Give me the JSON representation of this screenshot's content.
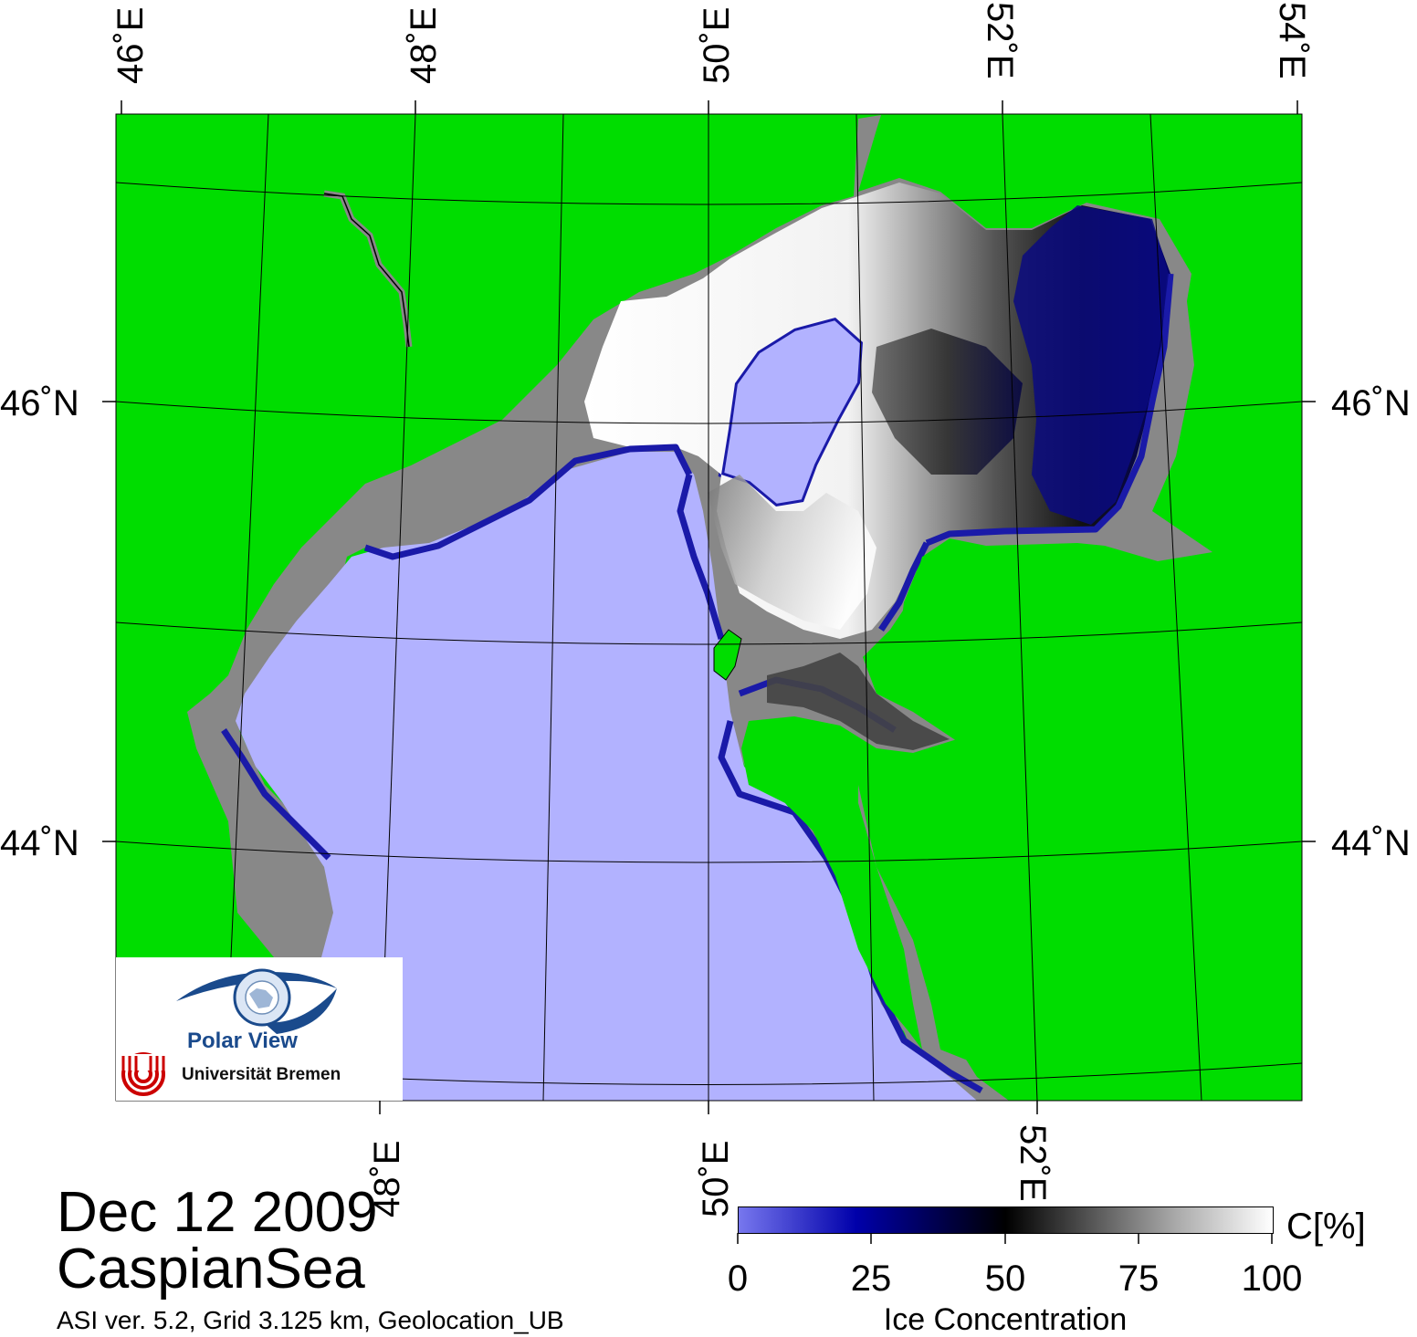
{
  "map": {
    "top_lon_labels": [
      "46˚E",
      "48˚E",
      "50˚E",
      "52˚E",
      "54˚E"
    ],
    "bottom_lon_labels": [
      "48˚E",
      "50˚E",
      "52˚E"
    ],
    "left_lat_labels": [
      "46˚N",
      "44˚N"
    ],
    "right_lat_labels": [
      "46˚N",
      "44˚N"
    ],
    "colors": {
      "land": "#00dd00",
      "coast": "#888888",
      "open_water": "#b2b2ff",
      "ice_edge": "#1a1aa8",
      "grid": "#000000"
    }
  },
  "header": {
    "date": "Dec 12 2009",
    "region": "CaspianSea",
    "info": "ASI ver. 5.2,  Grid 3.125 km, Geolocation_UB"
  },
  "logo": {
    "title": "Polar View",
    "university": "Universität Bremen"
  },
  "colorbar": {
    "unit": "C[%]",
    "title": "Ice Concentration",
    "ticks": [
      "0",
      "25",
      "50",
      "75",
      "100"
    ]
  }
}
